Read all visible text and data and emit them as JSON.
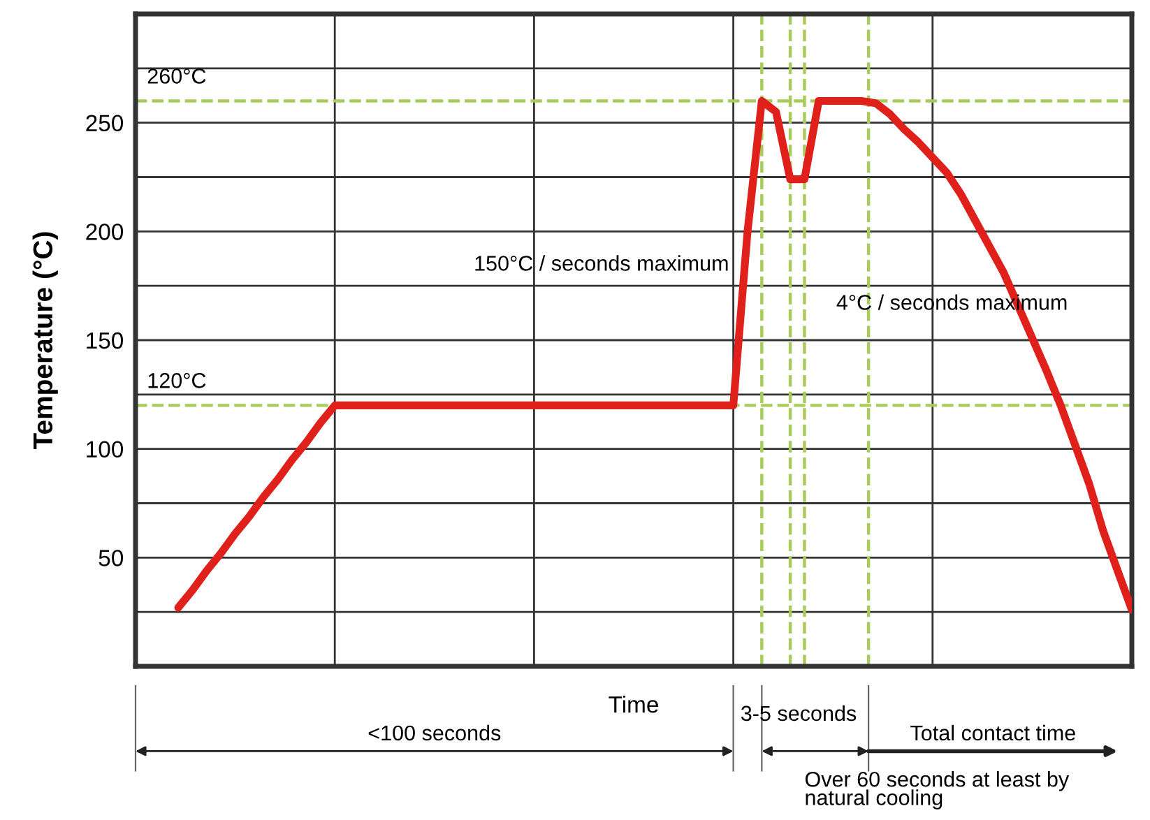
{
  "chart_data": {
    "type": "line",
    "ylabel": "Temperature (°C)",
    "xlabel": "Time",
    "categories": [
      null,
      null,
      null,
      null,
      null,
      null,
      null,
      null,
      null,
      null,
      null,
      null,
      null,
      null,
      null,
      null,
      null,
      null,
      null,
      null,
      null,
      null,
      null,
      null,
      null,
      null,
      null,
      null,
      null,
      null,
      null,
      null,
      null,
      null,
      null,
      null,
      null,
      null,
      null,
      null,
      null,
      null,
      null,
      null,
      null,
      null,
      null,
      null,
      null,
      null,
      null,
      null,
      null,
      null,
      null,
      null,
      null,
      null,
      null,
      null,
      null,
      null,
      null,
      null,
      null,
      null,
      null,
      null
    ],
    "series": [
      {
        "color": "#e0201b",
        "values": [
          27,
          35,
          44,
          52,
          61,
          69,
          78,
          86,
          95,
          103,
          112,
          120,
          120,
          120,
          120,
          120,
          120,
          120,
          120,
          120,
          120,
          120,
          120,
          120,
          120,
          120,
          120,
          120,
          120,
          120,
          120,
          120,
          120,
          120,
          120,
          120,
          120,
          120,
          120,
          120,
          200,
          260,
          255,
          224,
          224,
          260,
          260,
          260,
          260,
          259,
          254,
          247,
          241,
          234,
          227,
          217,
          205,
          193,
          181,
          166,
          151,
          136,
          120,
          102,
          84,
          62,
          44,
          26
        ]
      }
    ],
    "ylim": [
      0,
      300
    ],
    "yticks": [
      {
        "value": 25,
        "label": null
      },
      50,
      {
        "value": 75,
        "label": null
      },
      100,
      {
        "value": 125,
        "label": null
      },
      150,
      {
        "value": 175,
        "label": null
      },
      200,
      {
        "value": 225,
        "label": null
      },
      250,
      {
        "value": 275,
        "label": null
      }
    ],
    "tick_labels": "y",
    "grid": true,
    "legend": false,
    "marker": "none",
    "line_style": "solid",
    "ref_lines": [
      {
        "axis": "y",
        "value": 260,
        "label": "260°C",
        "color": "#a8cc5a",
        "line_style": "dashed"
      },
      {
        "axis": "y",
        "value": 120,
        "label": "120°C",
        "color": "#a8cc5a",
        "line_style": "dashed"
      }
    ],
    "annotations": [
      "150°C / seconds maximum",
      "4°C / seconds maximum",
      "<100 seconds",
      "3-5 seconds",
      "Total contact time",
      "Over 60 seconds at least by\nnatural cooling"
    ]
  }
}
